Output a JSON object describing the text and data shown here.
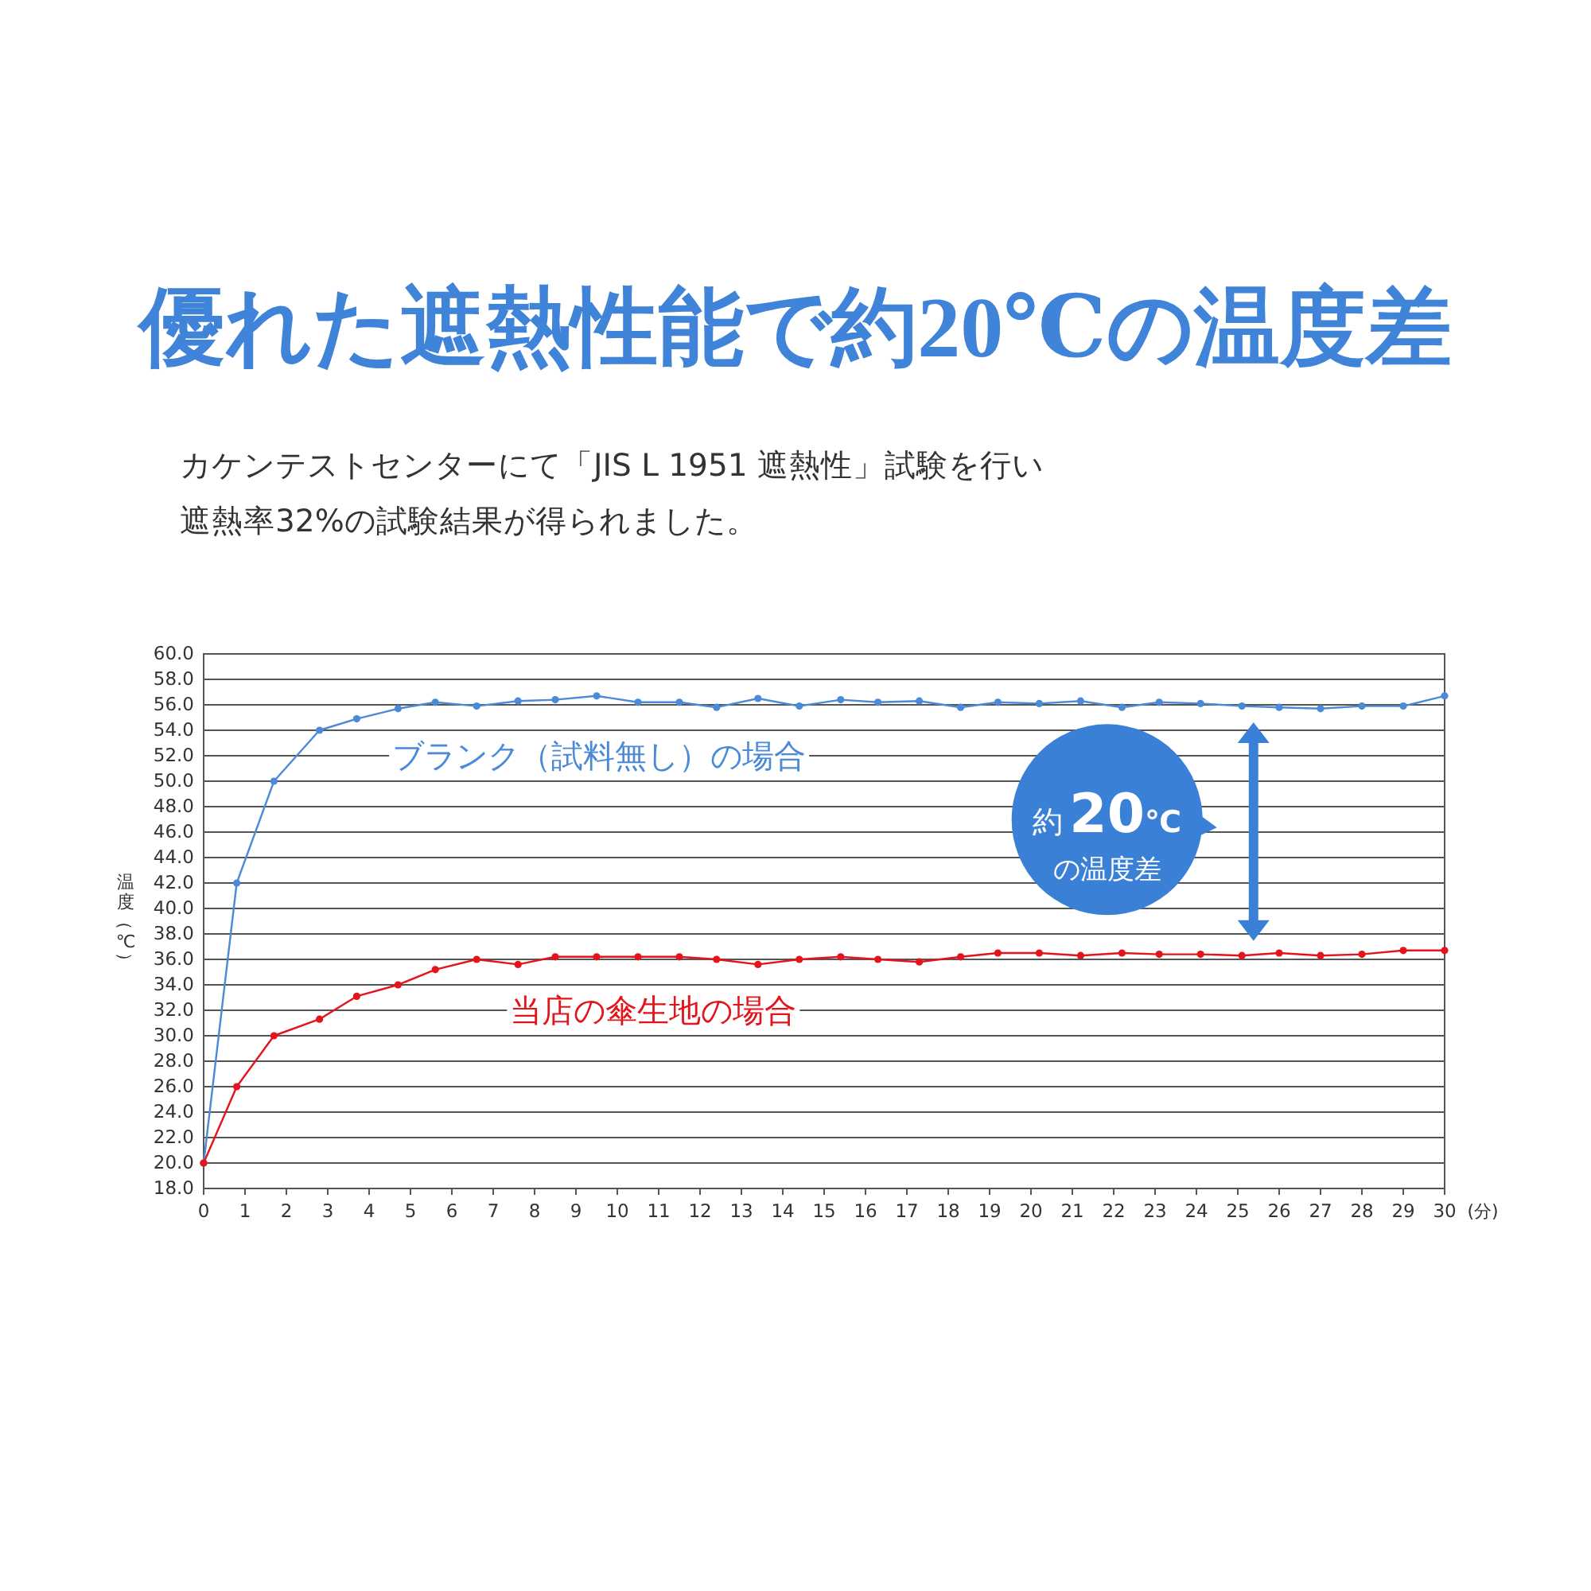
{
  "chart_data": {
    "type": "line",
    "title": "優れた遮熱性能で約20℃の温度差",
    "subtitle": "カケンテストセンターにて「JIS L 1951 遮熱性」試験を行い遮熱率32%の試験結果が得られました。",
    "xlabel": "(分)",
    "ylabel": "温度（℃）",
    "annotations": [
      "約20℃の温度差"
    ],
    "x": [
      0,
      0.8,
      1.7,
      2.8,
      3.7,
      4.7,
      5.6,
      6.6,
      7.6,
      8.5,
      9.5,
      10.5,
      11.5,
      12.4,
      13.4,
      14.4,
      15.4,
      16.3,
      17.3,
      18.3,
      19.2,
      20.2,
      21.2,
      22.2,
      23.1,
      24.1,
      25.1,
      26.0,
      27.0,
      28.0,
      29.0,
      30.0
    ],
    "series": [
      {
        "name": "ブランク（試料無し）の場合",
        "color": "#4a8ad6",
        "values": [
          20,
          42.0,
          50.0,
          54.0,
          54.9,
          55.7,
          56.2,
          55.9,
          56.3,
          56.4,
          56.7,
          56.2,
          56.2,
          55.8,
          56.5,
          55.9,
          56.4,
          56.2,
          56.3,
          55.8,
          56.2,
          56.1,
          56.3,
          55.8,
          56.2,
          56.1,
          55.9,
          55.8,
          55.7,
          55.9,
          55.9,
          56.7
        ]
      },
      {
        "name": "当店の傘生地の場合",
        "color": "#e3141b",
        "values": [
          20,
          26.0,
          30.0,
          31.3,
          33.1,
          34.0,
          35.2,
          36.0,
          35.6,
          36.2,
          36.2,
          36.2,
          36.2,
          36.0,
          35.6,
          36.0,
          36.2,
          36.0,
          35.8,
          36.2,
          36.5,
          36.5,
          36.3,
          36.5,
          36.4,
          36.4,
          36.3,
          36.5,
          36.3,
          36.4,
          36.7,
          36.7
        ]
      }
    ],
    "xlim": [
      0,
      30
    ],
    "xticks": [
      0,
      1,
      2,
      3,
      4,
      5,
      6,
      7,
      8,
      9,
      10,
      11,
      12,
      13,
      14,
      15,
      16,
      17,
      18,
      19,
      20,
      21,
      22,
      23,
      24,
      25,
      26,
      27,
      28,
      29,
      30
    ],
    "ylim": [
      18,
      60
    ],
    "yticks": [
      {
        "value": 18,
        "label": "18.0"
      },
      {
        "value": 20,
        "label": "20.0"
      },
      {
        "value": 22,
        "label": "22.0"
      },
      {
        "value": 24,
        "label": "24.0"
      },
      {
        "value": 26,
        "label": "26.0"
      },
      {
        "value": 28,
        "label": "28.0"
      },
      {
        "value": 30,
        "label": "30.0"
      },
      {
        "value": 32,
        "label": "32.0"
      },
      {
        "value": 34,
        "label": "34.0"
      },
      {
        "value": 36,
        "label": "36.0"
      },
      {
        "value": 38,
        "label": "38.0"
      },
      {
        "value": 40,
        "label": "40.0"
      },
      {
        "value": 42,
        "label": "42.0"
      },
      {
        "value": 44,
        "label": "44.0"
      },
      {
        "value": 46,
        "label": "46.0"
      },
      {
        "value": 48,
        "label": "48.0"
      },
      {
        "value": 50,
        "label": "50.0"
      },
      {
        "value": 52,
        "label": "52.0"
      },
      {
        "value": 54,
        "label": "54.0"
      },
      {
        "value": 56,
        "label": "56.0"
      },
      {
        "value": 58,
        "label": "58.0"
      },
      {
        "value": 60,
        "label": "60.0"
      }
    ],
    "grid": "y",
    "marker": "circle"
  }
}
